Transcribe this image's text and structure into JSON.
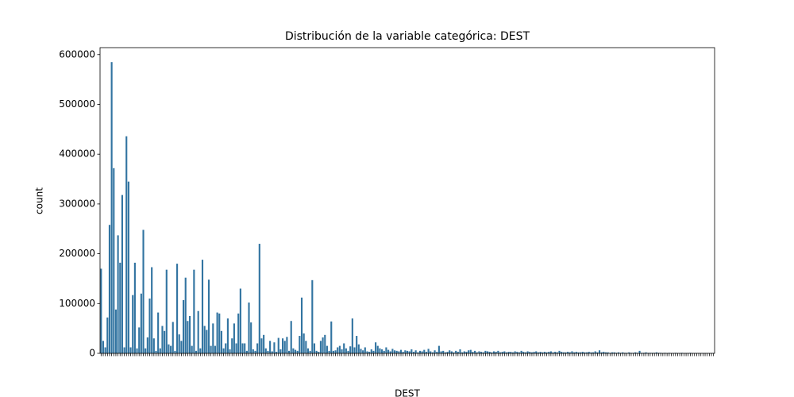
{
  "chart_data": {
    "type": "bar",
    "title": "Distribución de la variable categórica: DEST",
    "x_label": "DEST",
    "y_label": "count",
    "color": "#3274a1",
    "ylim": [
      0,
      614000
    ],
    "yticks": [
      0,
      100000,
      200000,
      300000,
      400000,
      500000,
      600000
    ],
    "grid": false,
    "values": [
      170000,
      25000,
      12000,
      72000,
      258000,
      585000,
      372000,
      88000,
      237000,
      182000,
      318000,
      12000,
      436000,
      345000,
      12000,
      117000,
      182000,
      10000,
      52000,
      120000,
      248000,
      10000,
      32000,
      110000,
      173000,
      30000,
      5000,
      82000,
      10000,
      55000,
      45000,
      168000,
      18000,
      15000,
      63000,
      5000,
      180000,
      38000,
      25000,
      107000,
      152000,
      65000,
      75000,
      15000,
      168000,
      5000,
      85000,
      10000,
      188000,
      55000,
      47000,
      148000,
      15000,
      60000,
      15000,
      82000,
      80000,
      45000,
      10000,
      20000,
      70000,
      8000,
      30000,
      60000,
      20000,
      80000,
      130000,
      20000,
      20000,
      5000,
      102000,
      62000,
      8000,
      5000,
      20000,
      220000,
      30000,
      37000,
      10000,
      5000,
      25000,
      4000,
      22000,
      3000,
      31000,
      8000,
      30000,
      25000,
      33000,
      5000,
      65000,
      10000,
      7000,
      5000,
      35000,
      112000,
      40000,
      25000,
      10000,
      5000,
      147000,
      20000,
      5000,
      3000,
      25000,
      32000,
      37000,
      15000,
      5000,
      64000,
      5000,
      6000,
      12000,
      15000,
      8000,
      20000,
      10000,
      5000,
      14000,
      70000,
      12000,
      35000,
      18000,
      9000,
      6000,
      12000,
      4000,
      3000,
      8000,
      5000,
      22000,
      15000,
      10000,
      8000,
      5000,
      12000,
      7000,
      4000,
      9000,
      6000,
      5000,
      4000,
      7000,
      3000,
      6000,
      5000,
      4000,
      8000,
      3000,
      6000,
      2000,
      5000,
      4000,
      7000,
      3000,
      9000,
      4000,
      2000,
      6000,
      3000,
      15000,
      4000,
      5000,
      2000,
      3000,
      6000,
      4000,
      2000,
      5000,
      3000,
      8000,
      2000,
      4000,
      3000,
      6000,
      7000,
      3000,
      5000,
      2000,
      4000,
      3000,
      2000,
      5000,
      4000,
      3000,
      2000,
      4000,
      3000,
      5000,
      2000,
      3000,
      4000,
      2000,
      3000,
      3000,
      2000,
      4000,
      3000,
      2000,
      5000,
      3000,
      2000,
      4000,
      3000,
      2000,
      3000,
      4000,
      2000,
      3000,
      2000,
      3000,
      2000,
      3000,
      4000,
      2000,
      3000,
      2000,
      5000,
      3000,
      2000,
      2000,
      3000,
      2000,
      4000,
      2000,
      3000,
      2000,
      2000,
      3000,
      2000,
      2000,
      3000,
      2000,
      2000,
      4000,
      2000,
      6000,
      2000,
      3000,
      2000,
      2000,
      1000,
      2000,
      2000,
      1000,
      2000,
      1000,
      2000,
      1000,
      1000,
      2000,
      1000,
      1000,
      2000,
      1000,
      5000,
      1000,
      1000,
      2000,
      1000,
      1000,
      1000,
      1000,
      2000,
      1000,
      1000,
      500,
      1000,
      500,
      1000,
      500,
      500,
      1000,
      500,
      500,
      1000,
      500,
      500,
      500,
      1000,
      500,
      500,
      500,
      500,
      500,
      500,
      500,
      500,
      500,
      500,
      500
    ]
  }
}
